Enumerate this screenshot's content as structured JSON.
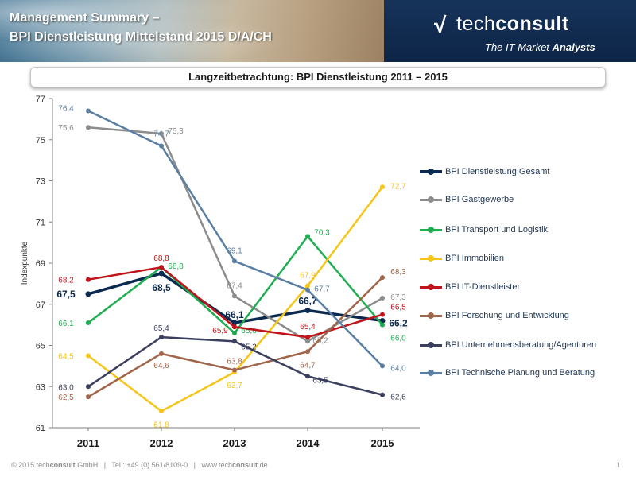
{
  "header": {
    "title_line1": "Management Summary –",
    "title_line2": "BPI Dienstleistung Mittelstand 2015 D/A/CH",
    "logo_text_light": "tech",
    "logo_text_bold": "consult",
    "logo_tagline_light": "The IT Market ",
    "logo_tagline_bold": "Analysts"
  },
  "footer": {
    "copyright_prefix": "© 2015 tech",
    "copyright_bold": "consult",
    "copyright_suffix": " GmbH   |   Tel.: +49 (0) 561/8109-0   |   www.tech",
    "website_bold": "consult",
    "website_suffix": ".de",
    "page_number": "1"
  },
  "chart_data": {
    "type": "line",
    "title": "Langzeitbetrachtung: BPI Dienstleistung 2011 – 2015",
    "ylabel": "Indexpunkte",
    "xlabel": "",
    "ylim": [
      61,
      77
    ],
    "yticks": [
      "61",
      "63",
      "65",
      "67",
      "69",
      "71",
      "73",
      "75",
      "77"
    ],
    "yticks_values": [
      61,
      63,
      65,
      67,
      69,
      71,
      73,
      75,
      77
    ],
    "categories": [
      "2011",
      "2012",
      "2013",
      "2014",
      "2015"
    ],
    "grid": false,
    "legend_position": "right",
    "series": [
      {
        "name": "BPI Dienstleistung Gesamt",
        "color": "#0b2a50",
        "bold": true,
        "values": [
          67.5,
          68.5,
          66.1,
          66.7,
          66.2
        ],
        "labels": [
          "67,5",
          "68,5",
          "66,1",
          "66,7",
          "66,2"
        ]
      },
      {
        "name": "BPI Gastgewerbe",
        "color": "#8c8c8c",
        "bold": false,
        "values": [
          75.6,
          75.3,
          67.4,
          65.2,
          67.3
        ],
        "labels": [
          "75,6",
          "75,3",
          "67,4",
          "65,2",
          "67,3"
        ]
      },
      {
        "name": "BPI Transport und Logistik",
        "color": "#1fae52",
        "bold": false,
        "values": [
          66.1,
          68.8,
          65.6,
          70.3,
          66.0
        ],
        "labels": [
          "66,1",
          "68,8",
          "65,6",
          "70,3",
          "66,0"
        ]
      },
      {
        "name": "BPI Immobilien",
        "color": "#f5c518",
        "bold": false,
        "values": [
          64.5,
          61.8,
          63.7,
          67.9,
          72.7
        ],
        "labels": [
          "64,5",
          "61,8",
          "63,7",
          "67,9",
          "72,7"
        ]
      },
      {
        "name": "BPI IT-Dienstleister",
        "color": "#c0141a",
        "bold": false,
        "values": [
          68.2,
          68.8,
          65.9,
          65.4,
          66.5
        ],
        "labels": [
          "68,2",
          "68,8",
          "65,9",
          "65,4",
          "66,5"
        ]
      },
      {
        "name": "BPI Forschung und Entwicklung",
        "color": "#a0654a",
        "bold": false,
        "values": [
          62.5,
          64.6,
          63.8,
          64.7,
          68.3
        ],
        "labels": [
          "62,5",
          "64,6",
          "63,8",
          "64,7",
          "68,3"
        ]
      },
      {
        "name": "BPI Unternehmensberatung/Agenturen",
        "color": "#3a3f5e",
        "bold": false,
        "values": [
          63.0,
          65.4,
          65.2,
          63.5,
          62.6
        ],
        "labels": [
          "63,0",
          "65,4",
          "65,2",
          "63,5",
          "62,6"
        ]
      },
      {
        "name": "BPI Technische Planung und Beratung",
        "color": "#5a7fa3",
        "bold": false,
        "values": [
          76.4,
          74.7,
          69.1,
          67.7,
          64.0
        ],
        "labels": [
          "76,4",
          "74,7",
          "69,1",
          "67,7",
          "64,0"
        ]
      }
    ]
  }
}
